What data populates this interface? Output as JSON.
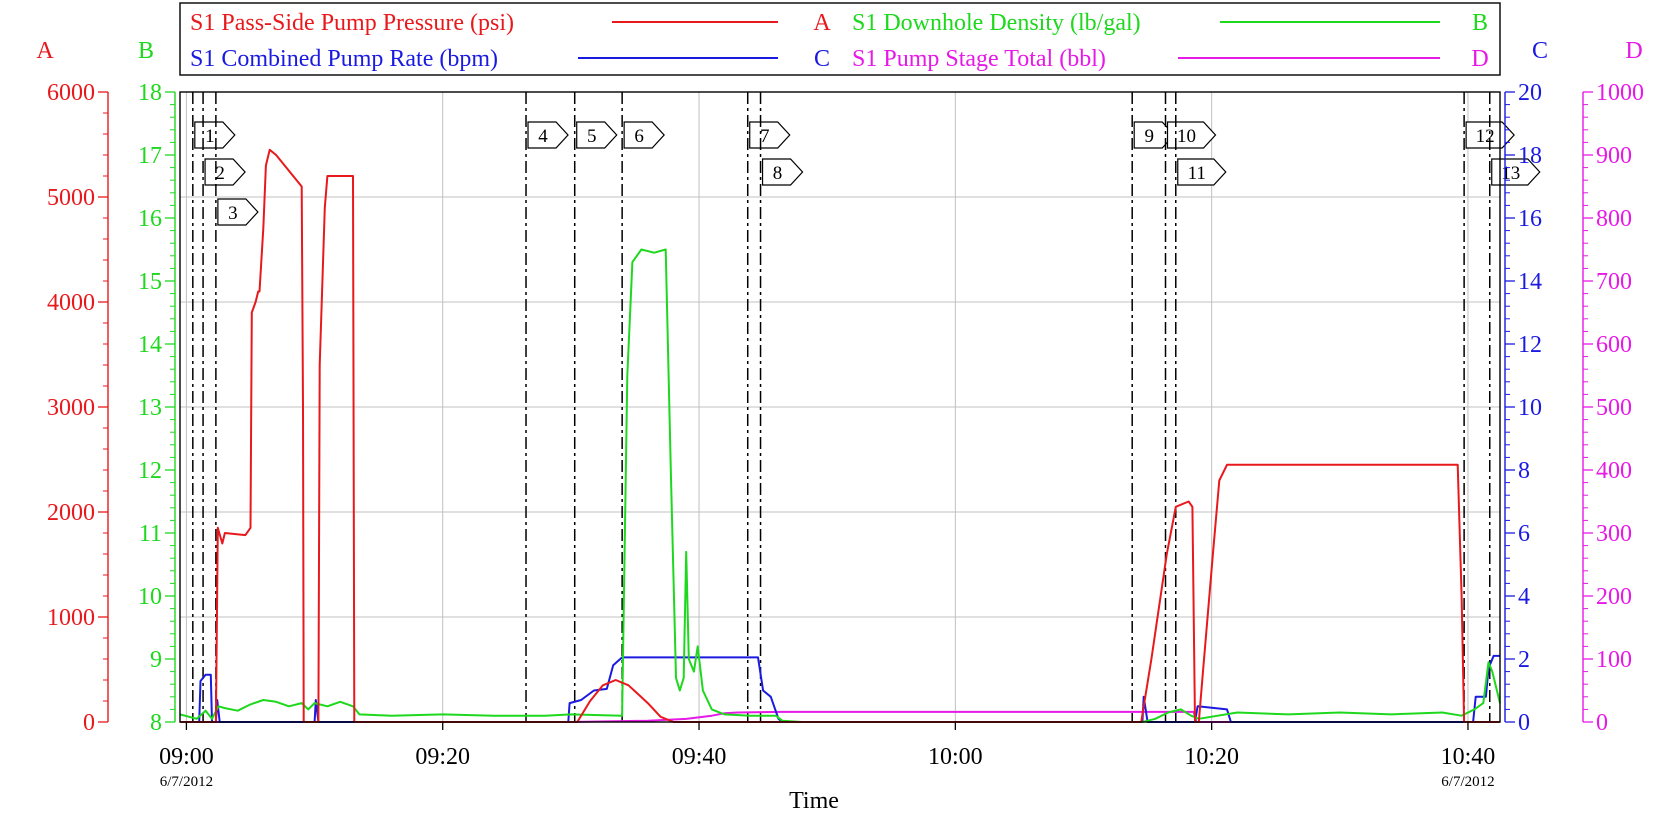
{
  "chart_data": {
    "type": "line",
    "xlabel": "Time",
    "x_ticks": [
      "09:00",
      "09:20",
      "09:40",
      "10:00",
      "10:20",
      "10:40"
    ],
    "x_tick_values": [
      0,
      20,
      40,
      60,
      80,
      100
    ],
    "x_range": [
      -0.5,
      102.5
    ],
    "date_labels": [
      {
        "at": 0,
        "text": "6/7/2012"
      },
      {
        "at": 100,
        "text": "6/7/2012"
      }
    ],
    "grid": true,
    "axes": [
      {
        "id": "A",
        "letter": "A",
        "color": "#e8191c",
        "side": "left",
        "range": [
          0,
          6000
        ],
        "ticks": [
          0,
          1000,
          2000,
          3000,
          4000,
          5000,
          6000
        ]
      },
      {
        "id": "B",
        "letter": "B",
        "color": "#1ed81e",
        "side": "left",
        "range": [
          8,
          18
        ],
        "ticks": [
          8,
          9,
          10,
          11,
          12,
          13,
          14,
          15,
          16,
          17,
          18
        ]
      },
      {
        "id": "C",
        "letter": "C",
        "color": "#1a1ae0",
        "side": "right",
        "range": [
          0,
          20
        ],
        "ticks": [
          0,
          2,
          4,
          6,
          8,
          10,
          12,
          14,
          16,
          18,
          20
        ]
      },
      {
        "id": "D",
        "letter": "D",
        "color": "#e619e6",
        "side": "right",
        "range": [
          0,
          1000
        ],
        "ticks": [
          0,
          100,
          200,
          300,
          400,
          500,
          600,
          700,
          800,
          900,
          1000
        ]
      }
    ],
    "legend": [
      {
        "name": "S1 Pass-Side Pump Pressure (psi)",
        "axis": "A",
        "color": "#e8191c"
      },
      {
        "name": "S1 Downhole Density (lb/gal)",
        "axis": "B",
        "color": "#1ed81e"
      },
      {
        "name": "S1 Combined Pump Rate (bpm)",
        "axis": "C",
        "color": "#1a1ae0"
      },
      {
        "name": "S1 Pump Stage Total (bbl)",
        "axis": "D",
        "color": "#e619e6"
      }
    ],
    "series": [
      {
        "name": "S1 Pass-Side Pump Pressure (psi)",
        "axis": "A",
        "color": "#e8191c",
        "points": [
          [
            -0.5,
            0
          ],
          [
            2.3,
            0
          ],
          [
            2.45,
            1850
          ],
          [
            2.8,
            1700
          ],
          [
            3.0,
            1800
          ],
          [
            4.6,
            1780
          ],
          [
            5.0,
            1850
          ],
          [
            5.1,
            3900
          ],
          [
            5.4,
            4000
          ],
          [
            5.6,
            4100
          ],
          [
            5.7,
            4100
          ],
          [
            6.0,
            4700
          ],
          [
            6.2,
            5300
          ],
          [
            6.5,
            5450
          ],
          [
            7.0,
            5400
          ],
          [
            8.0,
            5250
          ],
          [
            9.0,
            5100
          ],
          [
            9.1,
            3000
          ],
          [
            9.15,
            0
          ],
          [
            10.3,
            0
          ],
          [
            10.4,
            3400
          ],
          [
            10.8,
            4900
          ],
          [
            11.0,
            5200
          ],
          [
            13.0,
            5200
          ],
          [
            13.1,
            0
          ],
          [
            30.5,
            0
          ],
          [
            31.5,
            200
          ],
          [
            32.5,
            350
          ],
          [
            33.5,
            400
          ],
          [
            34.5,
            350
          ],
          [
            36.0,
            180
          ],
          [
            37.0,
            50
          ],
          [
            38.0,
            0
          ],
          [
            74.5,
            0
          ],
          [
            75.3,
            600
          ],
          [
            76.5,
            1600
          ],
          [
            77.2,
            2050
          ],
          [
            78.2,
            2100
          ],
          [
            78.5,
            2050
          ],
          [
            78.7,
            0
          ],
          [
            79.0,
            0
          ],
          [
            79.3,
            450
          ],
          [
            80.1,
            1600
          ],
          [
            80.6,
            2300
          ],
          [
            81.2,
            2450
          ],
          [
            92.0,
            2450
          ],
          [
            99.2,
            2450
          ],
          [
            99.5,
            1200
          ],
          [
            99.7,
            0
          ],
          [
            102.5,
            0
          ]
        ]
      },
      {
        "name": "S1 Downhole Density (lb/gal)",
        "axis": "B",
        "color": "#1ed81e",
        "points": [
          [
            -0.5,
            8.12
          ],
          [
            0.8,
            8.05
          ],
          [
            1.5,
            8.18
          ],
          [
            2.0,
            8.05
          ],
          [
            2.5,
            8.25
          ],
          [
            3.0,
            8.22
          ],
          [
            4.0,
            8.18
          ],
          [
            5.0,
            8.28
          ],
          [
            6.0,
            8.35
          ],
          [
            7.0,
            8.32
          ],
          [
            8.0,
            8.25
          ],
          [
            9.0,
            8.3
          ],
          [
            9.5,
            8.2
          ],
          [
            10.0,
            8.3
          ],
          [
            11.0,
            8.25
          ],
          [
            12.0,
            8.32
          ],
          [
            13.0,
            8.25
          ],
          [
            13.5,
            8.12
          ],
          [
            16.0,
            8.1
          ],
          [
            20.0,
            8.12
          ],
          [
            24.0,
            8.1
          ],
          [
            28.0,
            8.1
          ],
          [
            30.0,
            8.12
          ],
          [
            34.0,
            8.1
          ],
          [
            34.4,
            13.5
          ],
          [
            34.8,
            15.3
          ],
          [
            35.5,
            15.5
          ],
          [
            36.5,
            15.45
          ],
          [
            37.4,
            15.5
          ],
          [
            37.8,
            12.0
          ],
          [
            38.2,
            8.7
          ],
          [
            38.5,
            8.5
          ],
          [
            38.8,
            8.7
          ],
          [
            39.0,
            10.7
          ],
          [
            39.2,
            9.0
          ],
          [
            39.6,
            8.8
          ],
          [
            39.9,
            9.2
          ],
          [
            40.3,
            8.5
          ],
          [
            41.0,
            8.2
          ],
          [
            42.0,
            8.12
          ],
          [
            44.0,
            8.1
          ],
          [
            46.0,
            8.1
          ],
          [
            46.5,
            8.02
          ],
          [
            48.0,
            8.0
          ],
          [
            74.6,
            8.0
          ],
          [
            75.6,
            8.05
          ],
          [
            76.6,
            8.15
          ],
          [
            77.6,
            8.2
          ],
          [
            78.4,
            8.1
          ],
          [
            79.0,
            8.05
          ],
          [
            82.0,
            8.15
          ],
          [
            86.0,
            8.12
          ],
          [
            90.0,
            8.15
          ],
          [
            94.0,
            8.12
          ],
          [
            98.0,
            8.15
          ],
          [
            99.5,
            8.1
          ],
          [
            100.5,
            8.2
          ],
          [
            101.2,
            8.3
          ],
          [
            101.6,
            8.95
          ],
          [
            101.9,
            8.8
          ],
          [
            102.5,
            8.3
          ]
        ]
      },
      {
        "name": "S1 Combined Pump Rate (bpm)",
        "axis": "C",
        "color": "#1a1ae0",
        "points": [
          [
            -0.5,
            0
          ],
          [
            1.0,
            0
          ],
          [
            1.1,
            1.3
          ],
          [
            1.5,
            1.5
          ],
          [
            1.9,
            1.5
          ],
          [
            2.0,
            0
          ],
          [
            2.3,
            0
          ],
          [
            2.4,
            0.7
          ],
          [
            2.6,
            0
          ],
          [
            10.0,
            0
          ],
          [
            10.1,
            0.7
          ],
          [
            10.3,
            0
          ],
          [
            29.8,
            0
          ],
          [
            29.9,
            0.6
          ],
          [
            30.8,
            0.7
          ],
          [
            31.8,
            1.0
          ],
          [
            32.8,
            1.05
          ],
          [
            33.3,
            1.8
          ],
          [
            34.0,
            2.05
          ],
          [
            44.6,
            2.05
          ],
          [
            45.0,
            1.0
          ],
          [
            45.6,
            0.8
          ],
          [
            46.2,
            0.1
          ],
          [
            46.5,
            0
          ],
          [
            74.6,
            0
          ],
          [
            74.7,
            0.8
          ],
          [
            75.0,
            0
          ],
          [
            78.7,
            0
          ],
          [
            78.9,
            0.5
          ],
          [
            81.2,
            0.4
          ],
          [
            81.5,
            0
          ],
          [
            100.4,
            0
          ],
          [
            100.6,
            0.8
          ],
          [
            101.4,
            0.8
          ],
          [
            101.6,
            1.7
          ],
          [
            102.0,
            2.1
          ],
          [
            102.5,
            2.1
          ]
        ]
      },
      {
        "name": "S1 Pump Stage Total (bbl)",
        "axis": "D",
        "color": "#e619e6",
        "points": [
          [
            -0.5,
            0
          ],
          [
            30.0,
            0
          ],
          [
            36.0,
            2
          ],
          [
            39.0,
            5
          ],
          [
            41.0,
            10
          ],
          [
            42.0,
            14
          ],
          [
            43.0,
            15
          ],
          [
            46.5,
            16
          ],
          [
            60.0,
            16
          ],
          [
            74.6,
            16
          ],
          [
            78.6,
            16
          ],
          [
            78.8,
            0
          ],
          [
            102.5,
            0
          ]
        ]
      }
    ],
    "events": [
      {
        "label": "1",
        "t": 0.5,
        "row": 0
      },
      {
        "label": "2",
        "t": 1.3,
        "row": 1
      },
      {
        "label": "3",
        "t": 2.3,
        "row": 2
      },
      {
        "label": "4",
        "t": 26.5,
        "row": 0
      },
      {
        "label": "5",
        "t": 30.3,
        "row": 0
      },
      {
        "label": "6",
        "t": 34.0,
        "row": 0
      },
      {
        "label": "7",
        "t": 43.8,
        "row": 0
      },
      {
        "label": "8",
        "t": 44.8,
        "row": 1
      },
      {
        "label": "9",
        "t": 73.8,
        "row": 0
      },
      {
        "label": "10",
        "t": 76.4,
        "row": 0
      },
      {
        "label": "11",
        "t": 77.2,
        "row": 1
      },
      {
        "label": "12",
        "t": 99.7,
        "row": 0
      },
      {
        "label": "13",
        "t": 101.7,
        "row": 1
      }
    ]
  }
}
